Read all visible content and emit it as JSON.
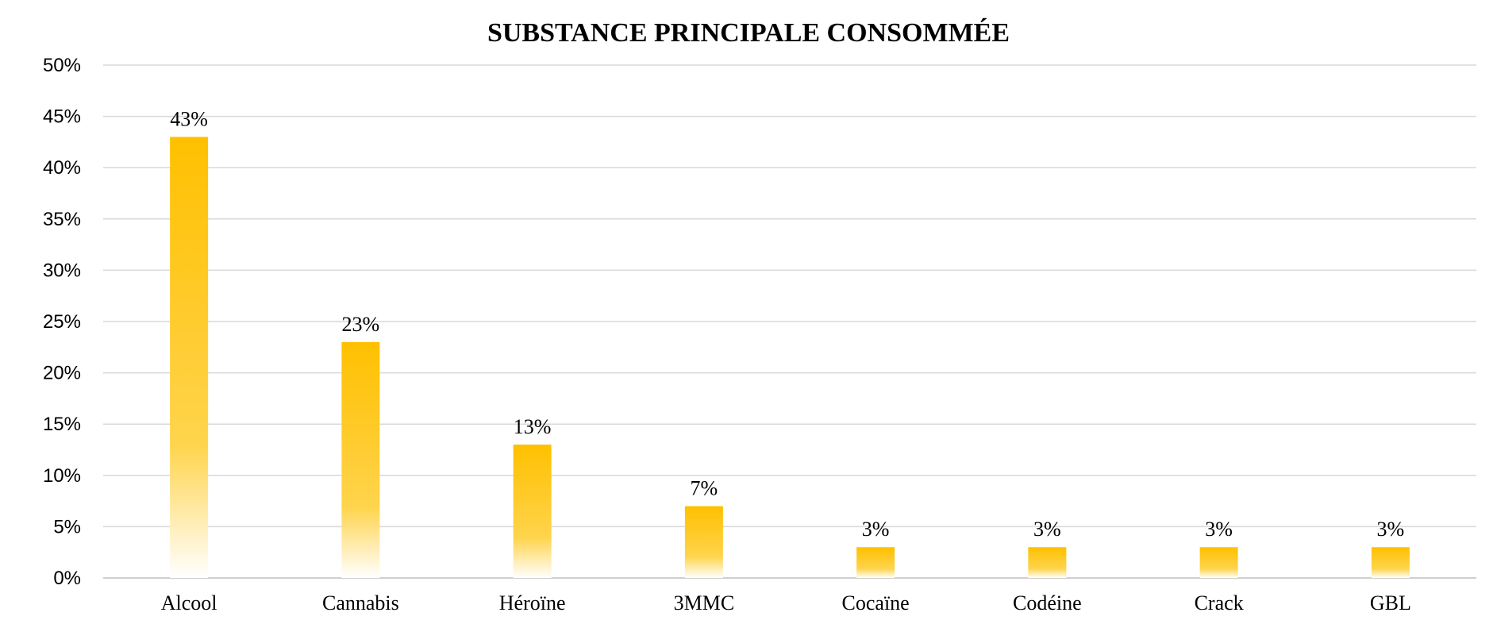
{
  "chart_data": {
    "type": "bar",
    "title": "SUBSTANCE PRINCIPALE CONSOMMÉE",
    "xlabel": "",
    "ylabel": "",
    "categories": [
      "Alcool",
      "Cannabis",
      "Héroïne",
      "3MMC",
      "Cocaïne",
      "Codéine",
      "Crack",
      "GBL"
    ],
    "values": [
      43,
      23,
      13,
      7,
      3,
      3,
      3,
      3
    ],
    "data_labels": [
      "43%",
      "23%",
      "13%",
      "7%",
      "3%",
      "3%",
      "3%",
      "3%"
    ],
    "ylim": [
      0,
      50
    ],
    "y_ticks": [
      0,
      5,
      10,
      15,
      20,
      25,
      30,
      35,
      40,
      45,
      50
    ],
    "y_tick_labels": [
      "0%",
      "5%",
      "10%",
      "15%",
      "20%",
      "25%",
      "30%",
      "35%",
      "40%",
      "45%",
      "50%"
    ],
    "grid": true,
    "legend": "none",
    "colors": {
      "bar_top": "#ffc000",
      "bar_bottom": "#ffffff"
    }
  }
}
